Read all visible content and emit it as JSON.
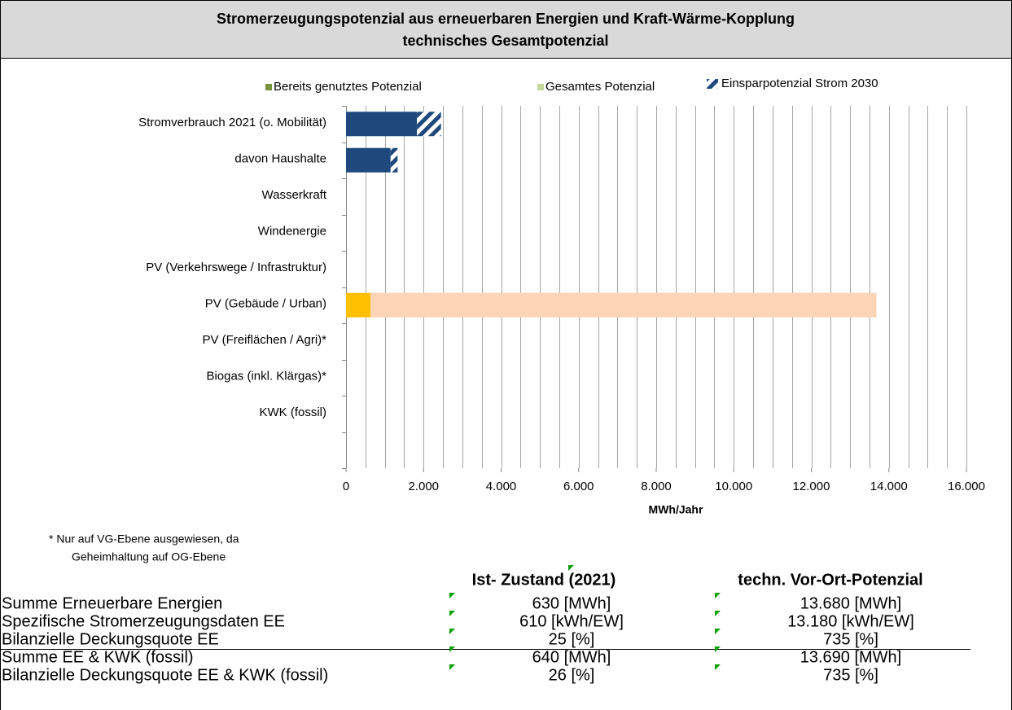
{
  "chart_data": {
    "type": "hbar_stacked",
    "title": [
      "Stromerzeugungspotenzial aus erneuerbaren Energien und Kraft-Wärme-Kopplung",
      "technisches Gesamtpotenzial"
    ],
    "categories": [
      "Stromverbrauch 2021 (o. Mobilität)",
      "davon Haushalte",
      "Wasserkraft",
      "Windenergie",
      "PV (Verkehrswege / Infrastruktur)",
      "PV (Gebäude / Urban)",
      "PV (Freiflächen / Agri)*",
      "Biogas (inkl. Klärgas)*",
      "KWK (fossil)",
      null
    ],
    "series": [
      {
        "name": "Bereits genutztes Potenzial",
        "color": "#77933c",
        "point_colors": [
          "#1f497d",
          "#1f497d",
          null,
          null,
          null,
          "#ffc000",
          null,
          null,
          null,
          null
        ],
        "values": [
          1830,
          1150,
          null,
          null,
          null,
          630,
          null,
          null,
          null,
          null
        ]
      },
      {
        "name": "Gesamtes Potenzial",
        "color": "#c3d69b",
        "point_colors": [
          null,
          null,
          null,
          null,
          null,
          "#fbd5b5",
          null,
          null,
          null,
          null
        ],
        "values": [
          null,
          null,
          null,
          null,
          null,
          13050,
          null,
          null,
          null,
          null
        ]
      },
      {
        "name": "Einsparpotenzial Strom 2030",
        "color": "#1f497d",
        "hatched": true,
        "values": [
          620,
          180,
          null,
          null,
          null,
          null,
          null,
          null,
          null,
          null
        ]
      }
    ],
    "xlabel": "MWh/Jahr",
    "xlim": [
      0,
      16000
    ],
    "xticks": [
      0,
      {
        "value": 2000,
        "label": "2.000"
      },
      {
        "value": 4000,
        "label": "4.000"
      },
      {
        "value": 6000,
        "label": "6.000"
      },
      {
        "value": 8000,
        "label": "8.000"
      },
      {
        "value": 10000,
        "label": "10.000"
      },
      {
        "value": 12000,
        "label": "12.000"
      },
      {
        "value": 14000,
        "label": "14.000"
      },
      {
        "value": 16000,
        "label": "16.000"
      }
    ],
    "xgrid": [
      500,
      1000,
      1500,
      2000,
      2500,
      3000,
      3500,
      4000,
      4500,
      5000,
      5500,
      6000,
      6500,
      7000,
      7500,
      8000,
      8500,
      9000,
      9500,
      10000,
      10500,
      11000,
      11500,
      12000,
      12500,
      13000,
      13500,
      14000,
      14500,
      15000,
      15500,
      16000
    ],
    "legend": "top"
  },
  "footnote": [
    "* Nur auf VG-Ebene ausgewiesen, da",
    "Geheimhaltung auf OG-Ebene"
  ],
  "table": {
    "header": [
      "Ist- Zustand (2021)",
      "techn. Vor-Ort-Potenzial"
    ],
    "rows": [
      [
        "Summe Erneuerbare Energien",
        "630 [MWh]",
        "13.680 [MWh]"
      ],
      [
        "Spezifische Stromerzeugungsdaten EE",
        "610 [kWh/EW]",
        "13.180 [kWh/EW]"
      ],
      [
        "Bilanzielle Deckungsquote EE",
        "25 [%]",
        "735 [%]"
      ],
      [
        "Summe EE & KWK (fossil)",
        "640 [MWh]",
        "13.690 [MWh]"
      ],
      [
        "Bilanzielle Deckungsquote EE & KWK (fossil)",
        "26 [%]",
        "735 [%]"
      ]
    ]
  }
}
